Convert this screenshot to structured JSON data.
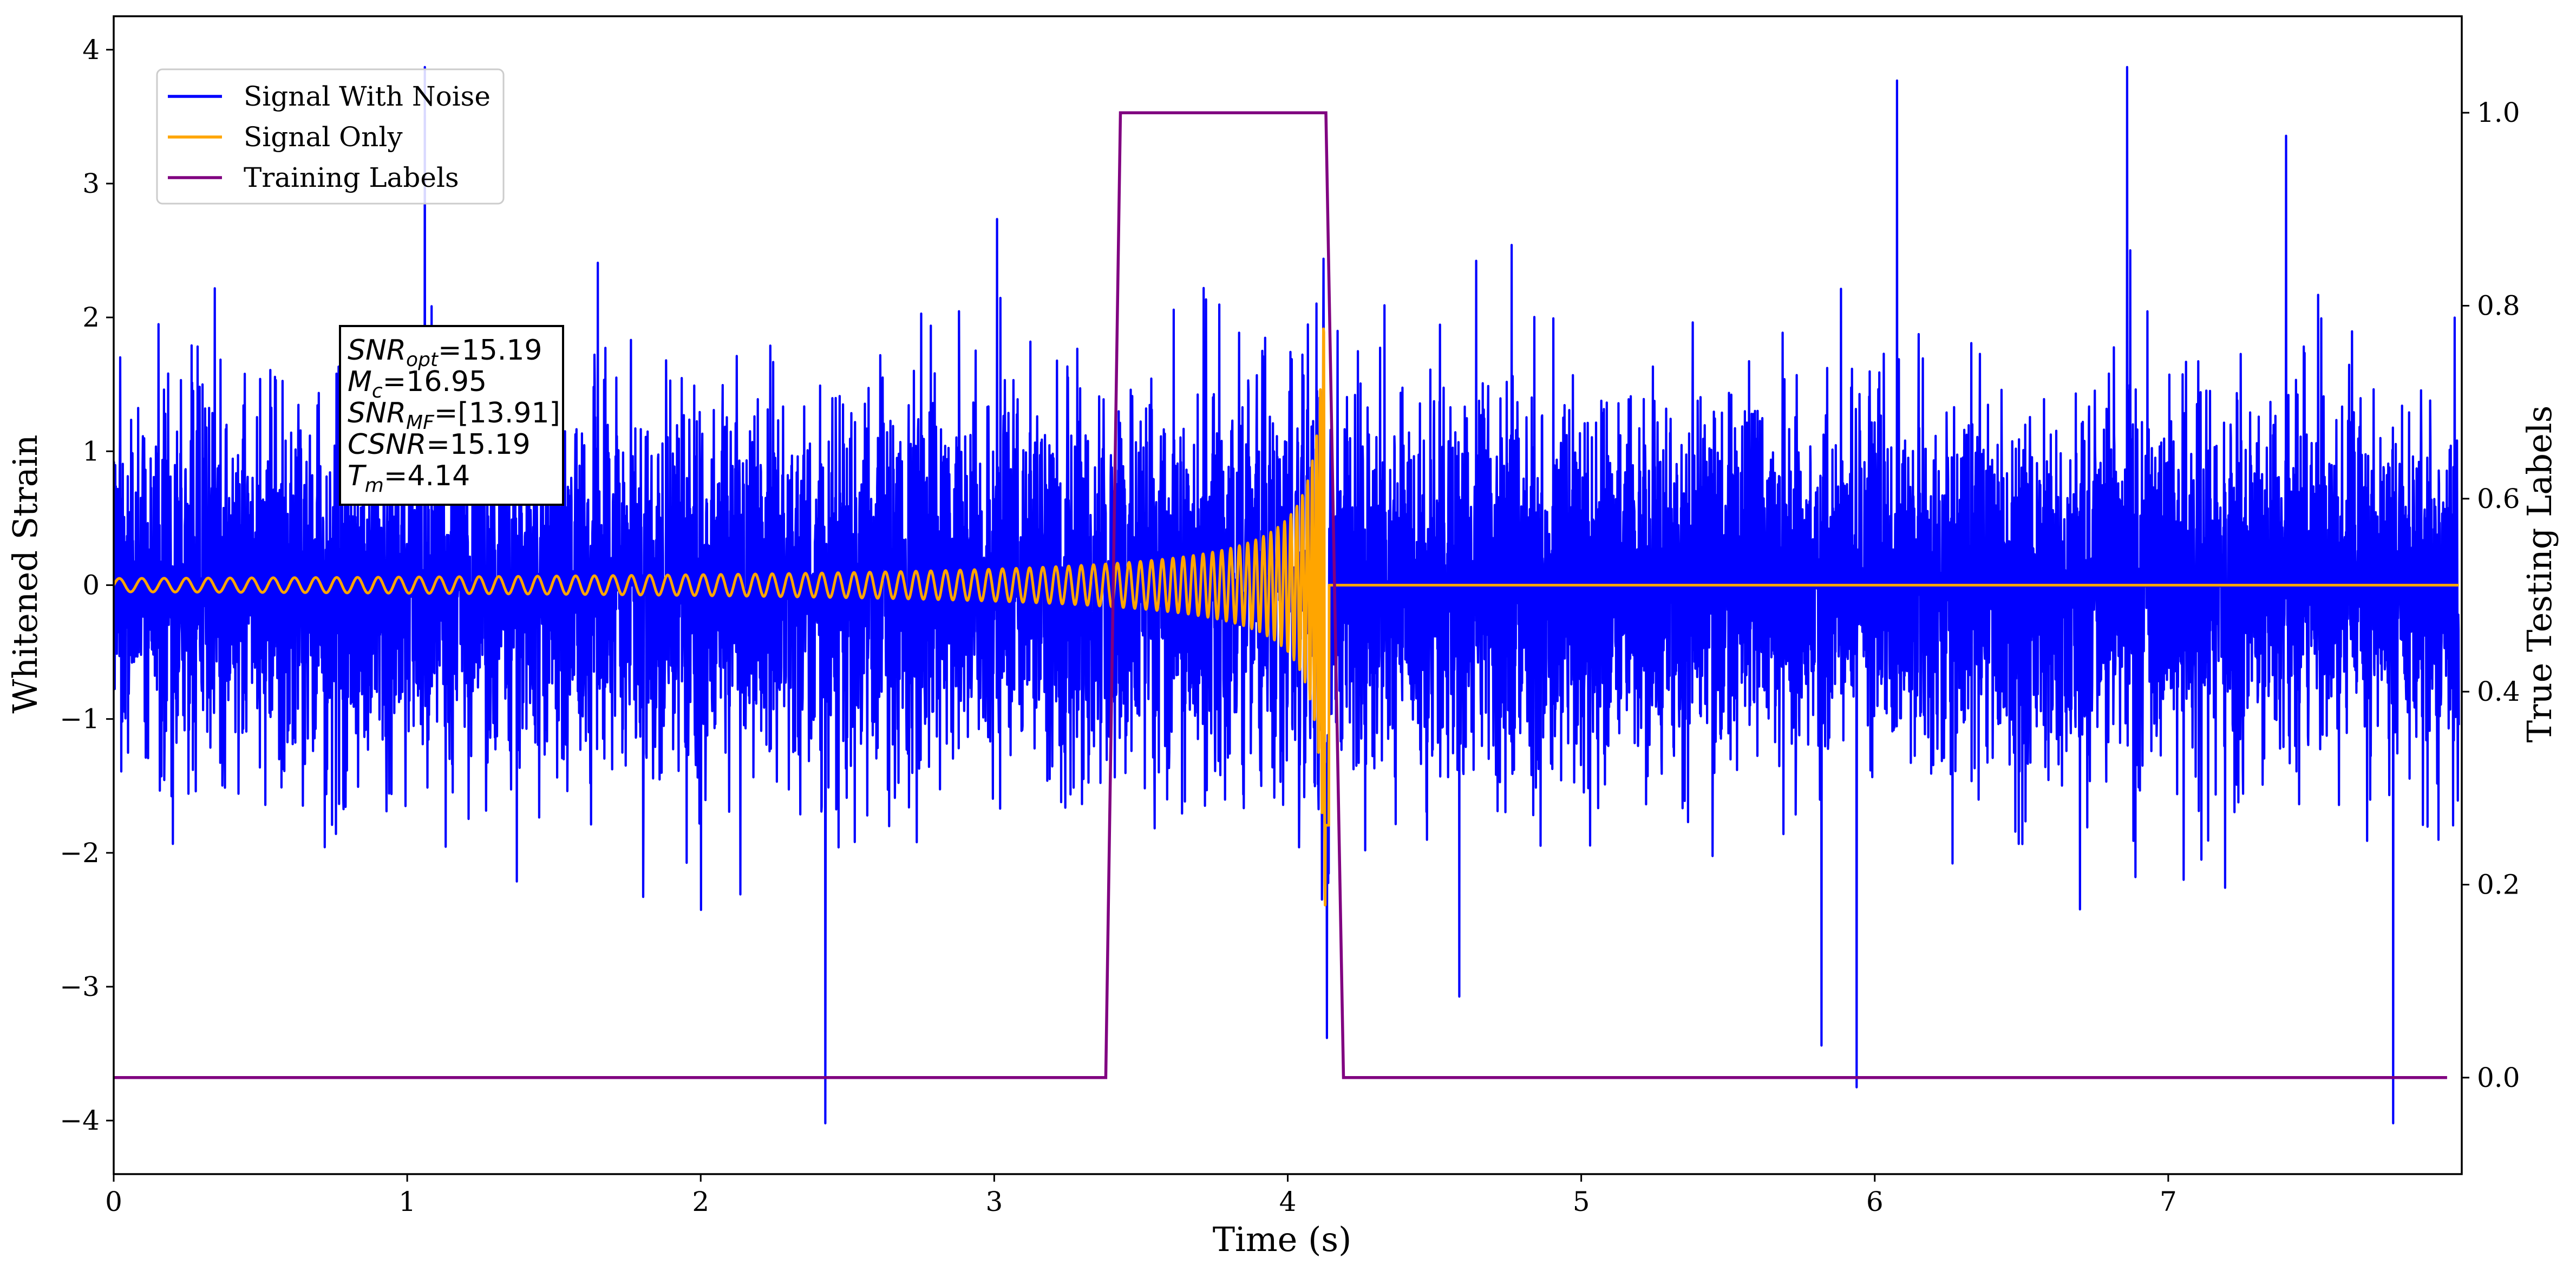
{
  "chart_data": {
    "type": "line",
    "title": "",
    "xlabel": "Time (s)",
    "ylabel": "Whitened Strain",
    "y2label": "True Testing Labels",
    "xlim": [
      0,
      8.0
    ],
    "ylim": [
      -4.4,
      4.25
    ],
    "y2lim": [
      -0.1,
      1.1
    ],
    "xticks": [
      "0",
      "1",
      "2",
      "3",
      "4",
      "5",
      "6",
      "7"
    ],
    "yticks": [
      "4",
      "3",
      "2",
      "1",
      "0",
      "−1",
      "−2",
      "−3",
      "−4"
    ],
    "y2ticks": [
      "1.0",
      "0.8",
      "0.6",
      "0.4",
      "0.2",
      "0.0"
    ],
    "grid": false,
    "legend_position": "top-left",
    "series": [
      {
        "name": "Signal With Noise",
        "color": "#0000ff",
        "axis": "left",
        "description_values": {
          "x_start": 0,
          "x_end": 8.0,
          "approx_std": 0.85,
          "min": -4.02,
          "max": 3.87
        }
      },
      {
        "name": "Signal Only",
        "color": "#ffa500",
        "axis": "left",
        "chirp": {
          "t_start": 0,
          "t_merger": 4.14,
          "amp_start": 0.05,
          "amp_peak": 2.6,
          "freq_start_hz": 13,
          "freq_end_hz": 55
        },
        "flat_after": 4.14
      },
      {
        "name": "Training Labels",
        "color": "#800080",
        "axis": "right",
        "x": [
          0,
          3.38,
          3.43,
          4.13,
          4.19,
          7.95
        ],
        "values": [
          0,
          0,
          1,
          1,
          0,
          0
        ]
      }
    ],
    "annotation": {
      "lines": [
        {
          "sym": "SNR",
          "sub": "opt",
          "rest": "=15.19"
        },
        {
          "sym": "M",
          "sub": "c",
          "rest": "=16.95"
        },
        {
          "sym": "SNR",
          "sub": "MF",
          "rest": "=[13.91]"
        },
        {
          "sym": "CSNR",
          "sub": "",
          "rest": "=15.19"
        },
        {
          "sym": "T",
          "sub": "m",
          "rest": "=4.14"
        }
      ]
    }
  }
}
